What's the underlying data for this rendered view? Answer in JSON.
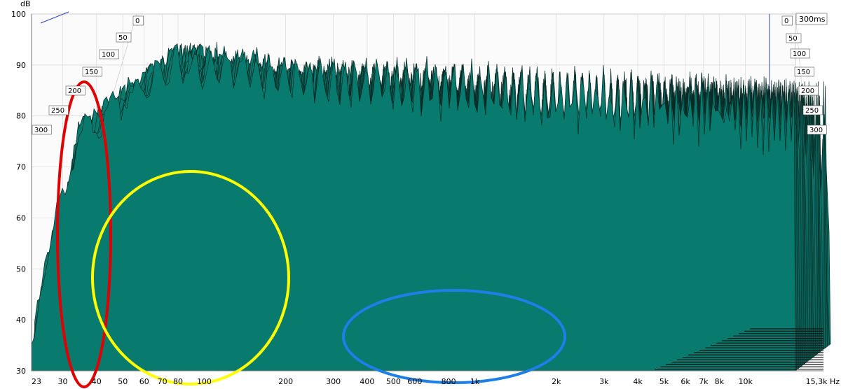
{
  "chart_data": {
    "type": "waterfall",
    "y_unit": "dB",
    "x_unit": "Hz",
    "time_unit_label": "300ms",
    "ylim": [
      30,
      100
    ],
    "y_ticks": [
      "30",
      "40",
      "50",
      "60",
      "70",
      "80",
      "90",
      "100"
    ],
    "x_ticks": [
      {
        "hz": 23,
        "label": "23"
      },
      {
        "hz": 30,
        "label": "30"
      },
      {
        "hz": 40,
        "label": "40"
      },
      {
        "hz": 50,
        "label": "50"
      },
      {
        "hz": 60,
        "label": "60"
      },
      {
        "hz": 70,
        "label": "70"
      },
      {
        "hz": 80,
        "label": "80"
      },
      {
        "hz": 100,
        "label": "100"
      },
      {
        "hz": 200,
        "label": "200"
      },
      {
        "hz": 300,
        "label": "300"
      },
      {
        "hz": 400,
        "label": "400"
      },
      {
        "hz": 500,
        "label": "500"
      },
      {
        "hz": 600,
        "label": "600"
      },
      {
        "hz": 800,
        "label": "800"
      },
      {
        "hz": 1000,
        "label": "1k"
      },
      {
        "hz": 2000,
        "label": "2k"
      },
      {
        "hz": 3000,
        "label": "3k"
      },
      {
        "hz": 4000,
        "label": "4k"
      },
      {
        "hz": 5000,
        "label": "5k"
      },
      {
        "hz": 6000,
        "label": "6k"
      },
      {
        "hz": 7000,
        "label": "7k"
      },
      {
        "hz": 8000,
        "label": "8k"
      },
      {
        "hz": 10000,
        "label": "10k"
      },
      {
        "hz": 15300,
        "label": "15,3k Hz"
      }
    ],
    "x_range_hz": [
      23,
      15300
    ],
    "time_ticks_ms": [
      "0",
      "50",
      "100",
      "150",
      "200",
      "250",
      "300"
    ],
    "surface_color": "#087a6e",
    "line_color": "#0a2a26",
    "annotations": [
      {
        "shape": "ellipse",
        "color": "#e00000",
        "around_hz": 35
      },
      {
        "shape": "ellipse",
        "color": "#ffff00",
        "around_hz": 85
      },
      {
        "shape": "ellipse",
        "color": "#1e7fe6",
        "around_hz": 750
      }
    ]
  }
}
